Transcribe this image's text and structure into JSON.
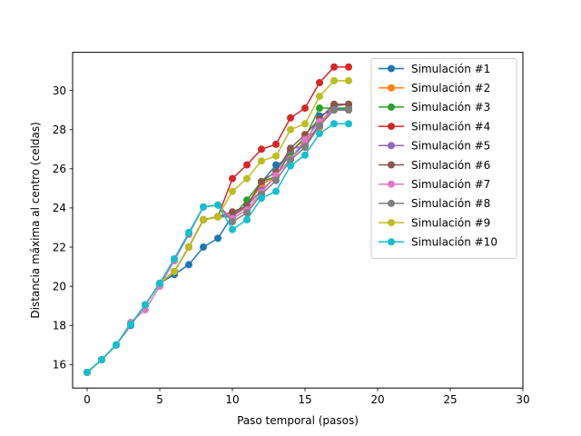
{
  "chart_data": {
    "type": "line",
    "title": "",
    "xlabel": "Paso temporal (pasos)",
    "ylabel": "Distancia máxima al centro (celdas)",
    "xlim": [
      -1,
      30
    ],
    "ylim": [
      14.8,
      31.95
    ],
    "xticks": [
      0,
      5,
      10,
      15,
      20,
      25,
      30
    ],
    "yticks": [
      16,
      18,
      20,
      22,
      24,
      26,
      28,
      30
    ],
    "grid": false,
    "legend": "top-right",
    "x": [
      0,
      1,
      2,
      3,
      4,
      5,
      6,
      7,
      8,
      9,
      10,
      11,
      12,
      13,
      14,
      15,
      16,
      17,
      18
    ],
    "series": [
      {
        "name": "Simulación #1",
        "color": "#1f77b4",
        "values": [
          15.6,
          16.25,
          17.0,
          18.0,
          19.05,
          20.15,
          20.6,
          21.1,
          22.0,
          22.45,
          23.6,
          24.15,
          25.3,
          26.2,
          26.55,
          27.3,
          28.7,
          29.05,
          29.05
        ]
      },
      {
        "name": "Simulación #2",
        "color": "#ff7f0e",
        "values": [
          15.6,
          16.25,
          17.0,
          18.05,
          19.05,
          20.15,
          20.75,
          22.0,
          23.4,
          23.55,
          23.55,
          24.05,
          25.2,
          25.6,
          26.9,
          27.5,
          28.1,
          29.3,
          29.3
        ]
      },
      {
        "name": "Simulación #3",
        "color": "#2ca02c",
        "values": [
          15.6,
          16.25,
          17.0,
          18.05,
          19.05,
          20.15,
          20.75,
          22.0,
          23.4,
          23.55,
          23.55,
          24.4,
          25.35,
          25.6,
          26.85,
          27.6,
          29.1,
          29.1,
          29.1
        ]
      },
      {
        "name": "Simulación #4",
        "color": "#d62728",
        "values": [
          15.6,
          16.25,
          17.0,
          18.05,
          19.05,
          20.15,
          20.75,
          22.0,
          23.4,
          23.55,
          25.5,
          26.2,
          27.0,
          27.25,
          28.6,
          29.1,
          30.4,
          31.2,
          31.2
        ]
      },
      {
        "name": "Simulación #5",
        "color": "#9467bd",
        "values": [
          15.6,
          16.25,
          17.0,
          18.05,
          19.05,
          20.15,
          20.75,
          22.0,
          23.4,
          23.55,
          23.6,
          24.1,
          24.9,
          25.6,
          27.0,
          27.2,
          28.3,
          29.2,
          29.3
        ]
      },
      {
        "name": "Simulación #6",
        "color": "#8c564b",
        "values": [
          15.6,
          16.25,
          17.0,
          18.05,
          19.05,
          20.15,
          20.75,
          22.0,
          23.4,
          23.55,
          23.8,
          24.1,
          25.35,
          25.85,
          27.05,
          27.75,
          28.55,
          29.3,
          29.3
        ]
      },
      {
        "name": "Simulación #7",
        "color": "#e377c2",
        "values": [
          15.6,
          16.25,
          17.0,
          18.15,
          18.8,
          20.0,
          21.3,
          22.65,
          24.05,
          24.15,
          23.45,
          23.9,
          24.8,
          25.65,
          26.5,
          27.5,
          28.4,
          29.0,
          29.0
        ]
      },
      {
        "name": "Simulación #8",
        "color": "#7f7f7f",
        "values": [
          15.6,
          16.25,
          17.0,
          18.05,
          19.05,
          20.15,
          21.4,
          22.7,
          24.05,
          24.15,
          23.3,
          23.75,
          24.7,
          25.4,
          26.45,
          27.1,
          28.2,
          29.0,
          29.0
        ]
      },
      {
        "name": "Simulación #9",
        "color": "#bcbd22",
        "values": [
          15.6,
          16.25,
          17.0,
          18.05,
          19.05,
          20.15,
          20.75,
          22.0,
          23.4,
          23.55,
          24.85,
          25.5,
          26.4,
          26.65,
          28.0,
          28.3,
          29.7,
          30.5,
          30.5
        ]
      },
      {
        "name": "Simulación #10",
        "color": "#17becf",
        "values": [
          15.6,
          16.25,
          17.0,
          18.05,
          19.05,
          20.15,
          21.4,
          22.75,
          24.05,
          24.15,
          22.9,
          23.4,
          24.5,
          24.85,
          26.15,
          26.7,
          27.8,
          28.3,
          28.3
        ]
      }
    ]
  }
}
